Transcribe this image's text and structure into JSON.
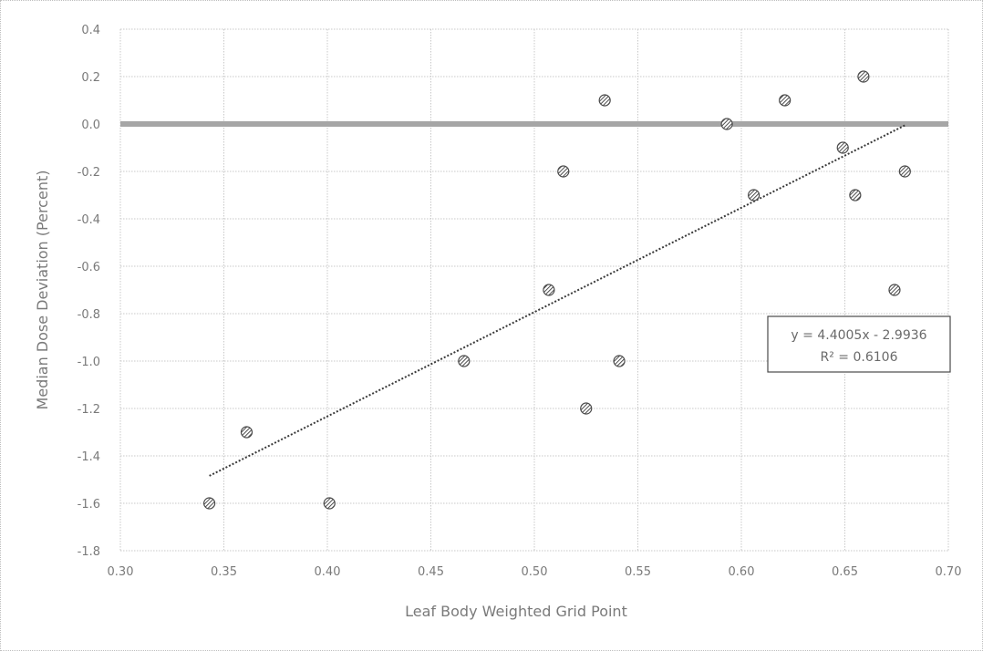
{
  "chart_data": {
    "type": "scatter",
    "xlabel": "Leaf Body Weighted Grid Point",
    "ylabel": "Median Dose Deviation (Percent)",
    "xlim": [
      0.3,
      0.7
    ],
    "ylim": [
      -1.8,
      0.4
    ],
    "x_ticks": [
      "0.30",
      "0.35",
      "0.40",
      "0.45",
      "0.50",
      "0.55",
      "0.60",
      "0.65",
      "0.70"
    ],
    "y_ticks": [
      "0.4",
      "0.2",
      "0.0",
      "-0.2",
      "-0.4",
      "-0.6",
      "-0.8",
      "-1.0",
      "-1.2",
      "-1.4",
      "-1.6",
      "-1.8"
    ],
    "grid": true,
    "legend": "none",
    "points": [
      {
        "x": 0.343,
        "y": -1.6
      },
      {
        "x": 0.361,
        "y": -1.3
      },
      {
        "x": 0.401,
        "y": -1.6
      },
      {
        "x": 0.466,
        "y": -1.0
      },
      {
        "x": 0.507,
        "y": -0.7
      },
      {
        "x": 0.514,
        "y": -0.2
      },
      {
        "x": 0.525,
        "y": -1.2
      },
      {
        "x": 0.534,
        "y": 0.1
      },
      {
        "x": 0.541,
        "y": -1.0
      },
      {
        "x": 0.593,
        "y": 0.0
      },
      {
        "x": 0.606,
        "y": -0.3
      },
      {
        "x": 0.621,
        "y": 0.1
      },
      {
        "x": 0.649,
        "y": -0.1
      },
      {
        "x": 0.655,
        "y": -0.3
      },
      {
        "x": 0.659,
        "y": 0.2
      },
      {
        "x": 0.674,
        "y": -0.7
      },
      {
        "x": 0.679,
        "y": -0.2
      }
    ],
    "trendline": {
      "type": "linear",
      "slope": 4.4005,
      "intercept": -2.9936,
      "x_range": [
        0.343,
        0.679
      ],
      "equation": "y = 4.4005x - 2.9936",
      "r_squared": "R² = 0.6106"
    },
    "colors": {
      "grid": "#c8c8c8",
      "zero_line": "#a6a6a6",
      "marker": "#4a4a4a",
      "trendline": "#3a3a3a"
    }
  }
}
